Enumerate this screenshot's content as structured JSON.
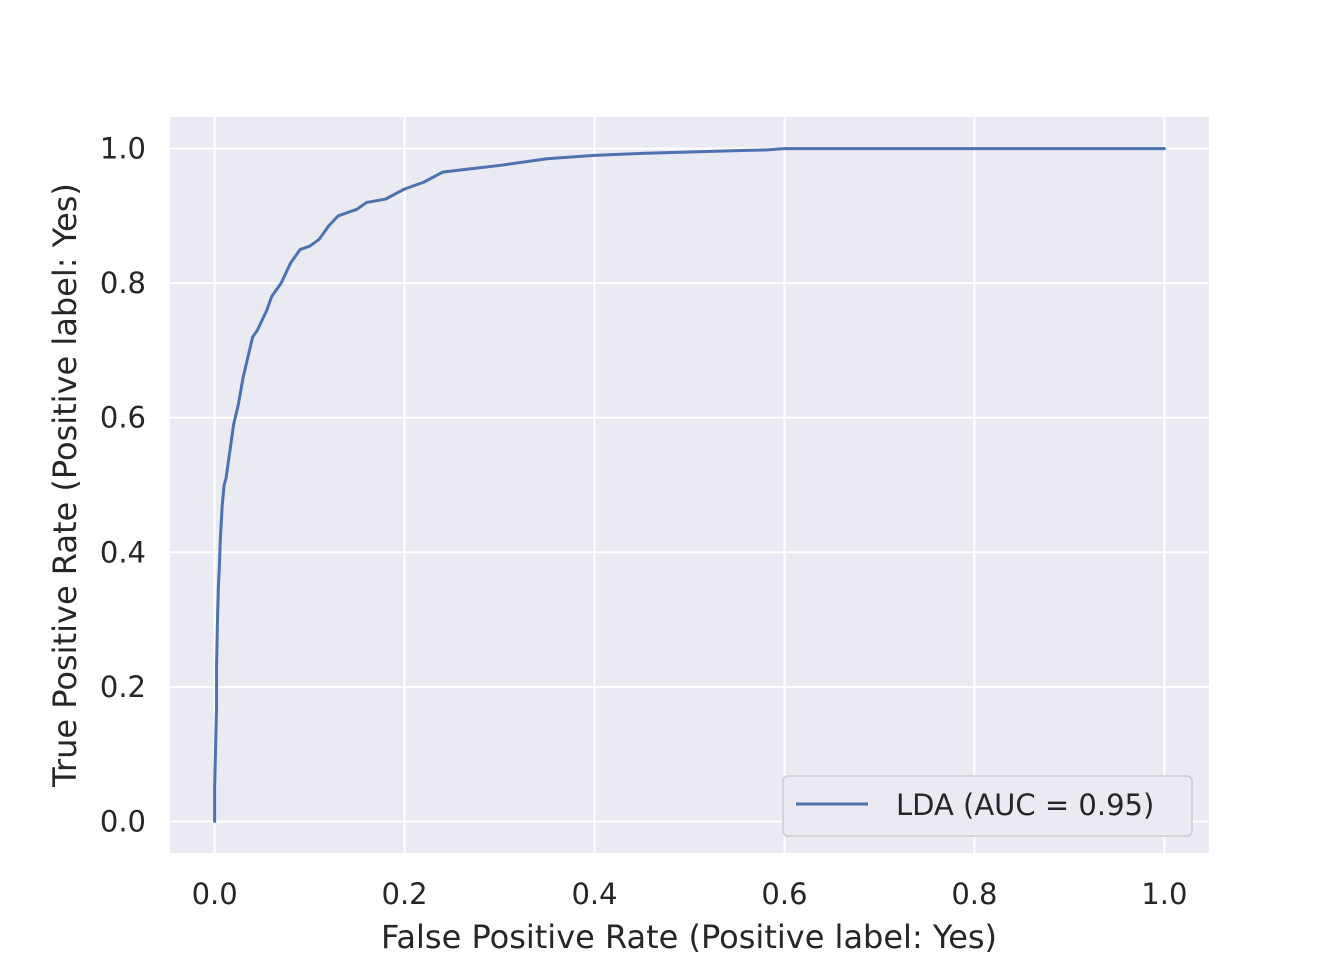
{
  "chart_data": {
    "type": "line",
    "title": "",
    "xlabel": "False Positive Rate (Positive label: Yes)",
    "ylabel": "True Positive Rate (Positive label: Yes)",
    "xlim": [
      -0.047,
      1.047
    ],
    "ylim": [
      -0.047,
      1.047
    ],
    "xticks": [
      "0.0",
      "0.2",
      "0.4",
      "0.6",
      "0.8",
      "1.0"
    ],
    "yticks": [
      "0.0",
      "0.2",
      "0.4",
      "0.6",
      "0.8",
      "1.0"
    ],
    "grid": true,
    "legend_position": "lower-right",
    "colors": {
      "background": "#eaeaf2",
      "grid": "#ffffff",
      "line": "#4c72b0"
    },
    "series": [
      {
        "name": "LDA (AUC = 0.95)",
        "x": [
          0.0,
          0.0,
          0.002,
          0.002,
          0.003,
          0.004,
          0.005,
          0.006,
          0.008,
          0.01,
          0.012,
          0.015,
          0.018,
          0.02,
          0.025,
          0.03,
          0.035,
          0.04,
          0.045,
          0.05,
          0.055,
          0.06,
          0.07,
          0.08,
          0.09,
          0.1,
          0.11,
          0.12,
          0.13,
          0.14,
          0.15,
          0.16,
          0.18,
          0.2,
          0.22,
          0.24,
          0.27,
          0.3,
          0.35,
          0.4,
          0.45,
          0.5,
          0.55,
          0.58,
          0.6,
          0.7,
          0.8,
          0.9,
          1.0
        ],
        "y": [
          0.0,
          0.05,
          0.17,
          0.23,
          0.3,
          0.35,
          0.38,
          0.42,
          0.47,
          0.5,
          0.51,
          0.54,
          0.57,
          0.59,
          0.62,
          0.66,
          0.69,
          0.72,
          0.73,
          0.745,
          0.76,
          0.78,
          0.8,
          0.83,
          0.85,
          0.855,
          0.865,
          0.885,
          0.9,
          0.905,
          0.91,
          0.92,
          0.925,
          0.94,
          0.95,
          0.965,
          0.97,
          0.975,
          0.985,
          0.99,
          0.993,
          0.995,
          0.997,
          0.998,
          1.0,
          1.0,
          1.0,
          1.0,
          1.0
        ]
      }
    ]
  }
}
